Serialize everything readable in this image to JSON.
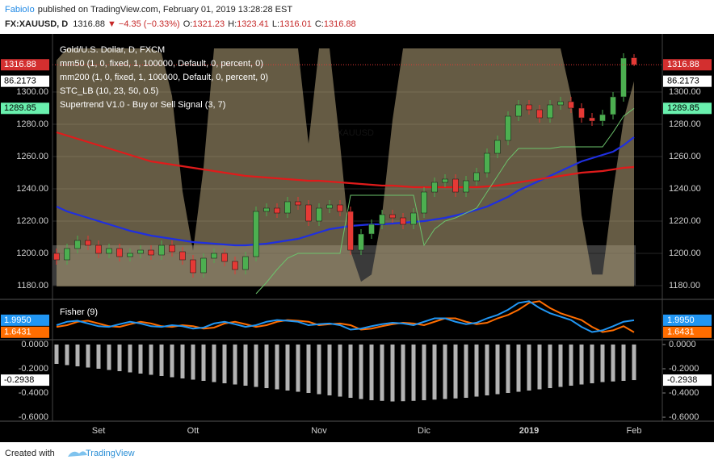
{
  "header": {
    "author": "FabioIo",
    "published": "published on TradingView.com, February 01, 2019 13:28:28 EST",
    "symbol": "FX:XAUUSD, D",
    "change": "−4.35 (−0.33%)",
    "ohlc_labels": [
      "O:",
      "H:",
      "L:",
      "C:"
    ]
  },
  "footer": {
    "prefix": "Created with",
    "brand": "TradingView"
  },
  "chart_data": [
    {
      "type": "candlestick",
      "title": "Gold/U.S. Dollar, D, FXCM",
      "watermark": "XAUUSD",
      "categories": [
        null,
        null,
        null,
        null,
        "Set",
        null,
        null,
        null,
        null,
        null,
        null,
        null,
        null,
        "Ott",
        null,
        null,
        null,
        null,
        null,
        null,
        null,
        null,
        null,
        null,
        null,
        "Nov",
        null,
        null,
        null,
        null,
        null,
        null,
        null,
        null,
        null,
        "Dic",
        null,
        null,
        null,
        null,
        null,
        null,
        null,
        null,
        null,
        "2019",
        null,
        null,
        null,
        null,
        null,
        null,
        null,
        null,
        null,
        "Feb"
      ],
      "open": [
        1200,
        1196,
        1203,
        1208,
        1205,
        1200,
        1203,
        1198,
        1200,
        1202,
        1199,
        1205,
        1201,
        1196,
        1188,
        1197,
        1200,
        1195,
        1190,
        1198,
        1226,
        1228,
        1225,
        1232,
        1230,
        1220,
        1228,
        1230,
        1226,
        1202,
        1212,
        1218,
        1224,
        1222,
        1218,
        1225,
        1238,
        1244,
        1246,
        1238,
        1245,
        1250,
        1262,
        1270,
        1285,
        1292,
        1289,
        1284,
        1292,
        1294,
        1290,
        1284,
        1282,
        1286,
        1297,
        1321.23
      ],
      "high": [
        1203,
        1206,
        1211,
        1211,
        1208,
        1206,
        1206,
        1203,
        1205,
        1205,
        1208,
        1208,
        1204,
        1199,
        1200,
        1203,
        1203,
        1198,
        1201,
        1229,
        1231,
        1231,
        1235,
        1235,
        1233,
        1231,
        1233,
        1233,
        1229,
        1215,
        1221,
        1227,
        1227,
        1225,
        1228,
        1241,
        1247,
        1249,
        1249,
        1248,
        1253,
        1265,
        1273,
        1288,
        1295,
        1295,
        1292,
        1295,
        1297,
        1297,
        1293,
        1287,
        1289,
        1300,
        1324,
        1323.41
      ],
      "low": [
        1193,
        1193,
        1200,
        1202,
        1197,
        1197,
        1195,
        1195,
        1197,
        1196,
        1196,
        1198,
        1193,
        1185,
        1185,
        1194,
        1192,
        1187,
        1187,
        1195,
        1223,
        1222,
        1222,
        1227,
        1217,
        1217,
        1225,
        1223,
        1199,
        1199,
        1209,
        1215,
        1219,
        1215,
        1215,
        1222,
        1235,
        1241,
        1235,
        1235,
        1242,
        1247,
        1259,
        1267,
        1282,
        1286,
        1281,
        1281,
        1289,
        1287,
        1281,
        1279,
        1279,
        1283,
        1294,
        1316.01
      ],
      "close": [
        1196,
        1203,
        1208,
        1205,
        1200,
        1203,
        1198,
        1200,
        1202,
        1199,
        1205,
        1201,
        1196,
        1188,
        1197,
        1200,
        1195,
        1190,
        1198,
        1226,
        1228,
        1225,
        1232,
        1230,
        1220,
        1228,
        1230,
        1226,
        1202,
        1212,
        1218,
        1224,
        1222,
        1218,
        1225,
        1238,
        1244,
        1246,
        1238,
        1245,
        1250,
        1262,
        1270,
        1285,
        1292,
        1289,
        1284,
        1292,
        1294,
        1290,
        1284,
        1282,
        1286,
        1297,
        1321,
        1316.88
      ],
      "up_color": "#4caf50",
      "down_color": "#e53935",
      "ylim": [
        1172,
        1336
      ],
      "yticks": [
        {
          "value": 1180,
          "label": "1180.00"
        },
        {
          "value": 1200,
          "label": "1200.00"
        },
        {
          "value": 1220,
          "label": "1220.00"
        },
        {
          "value": 1240,
          "label": "1240.00"
        },
        {
          "value": 1260,
          "label": "1260.00"
        },
        {
          "value": 1280,
          "label": "1280.00"
        },
        {
          "value": 1300,
          "label": "1300.00"
        }
      ],
      "y2lim": [
        0,
        100
      ],
      "series": [
        {
          "name": "mm50 (1, 0, fixed, 1, 100000, Default, 0, percent, 0)",
          "color": "#1f2fe0",
          "values": [
            1229,
            1226,
            1224,
            1222,
            1220,
            1218,
            1216,
            1214,
            1212.5,
            1211,
            1210,
            1209,
            1208,
            1207,
            1206.5,
            1206,
            1205.5,
            1205,
            1205,
            1205.5,
            1206,
            1207,
            1208,
            1209,
            1211,
            1213,
            1215,
            1216,
            1217,
            1217.5,
            1218,
            1218,
            1218.5,
            1219,
            1219.5,
            1220,
            1221,
            1222,
            1223.5,
            1225,
            1227,
            1229,
            1232,
            1235,
            1239,
            1242,
            1245,
            1248,
            1251,
            1254,
            1257,
            1259,
            1261,
            1263,
            1267,
            1272
          ]
        },
        {
          "name": "mm200 (1, 0, fixed, 1, 100000, Default, 0, percent, 0)",
          "color": "#e01b1b",
          "values": [
            1275,
            1273,
            1271,
            1269,
            1267,
            1265,
            1263,
            1261,
            1259,
            1257,
            1256,
            1255,
            1254,
            1253,
            1252,
            1251,
            1250,
            1249,
            1248,
            1247.5,
            1247,
            1246.5,
            1246,
            1245.5,
            1245,
            1245,
            1244.5,
            1244,
            1243.5,
            1243,
            1242.5,
            1242,
            1242,
            1241.5,
            1241,
            1241,
            1241,
            1241,
            1241,
            1241,
            1241,
            1241.5,
            1242,
            1243,
            1244,
            1245,
            1246,
            1247,
            1248,
            1249,
            1250,
            1250.5,
            1251,
            1252,
            1253,
            1253.5
          ]
        },
        {
          "name": "STC_LB (10, 23, 50, 0.5)",
          "type": "area",
          "axis": "y2",
          "color": "#b8a67c",
          "values": [
            95,
            100,
            100,
            100,
            100,
            100,
            100,
            100,
            100,
            100,
            98,
            80,
            40,
            15,
            50,
            100,
            100,
            100,
            100,
            100,
            100,
            100,
            100,
            100,
            60,
            100,
            100,
            60,
            15,
            2,
            5,
            30,
            70,
            100,
            100,
            100,
            100,
            100,
            100,
            100,
            100,
            100,
            100,
            100,
            100,
            100,
            100,
            100,
            100,
            80,
            30,
            5,
            5,
            40,
            70,
            86.2173
          ]
        },
        {
          "name": "Supertrend V1.0 - Buy or Sell Signal (3, 7)",
          "color": "#6cc36c",
          "values": [
            null,
            null,
            null,
            null,
            null,
            null,
            null,
            null,
            null,
            null,
            null,
            null,
            null,
            null,
            null,
            null,
            null,
            null,
            null,
            1175,
            1182,
            1190,
            1197,
            1200,
            1200,
            1200,
            1200,
            1200,
            1236,
            1236,
            1236,
            1236,
            1236,
            1236,
            1236,
            1205,
            1215,
            1220,
            1222,
            1225,
            1228,
            1238,
            1248,
            1258,
            1265,
            1265,
            1265,
            1265,
            1266,
            1266,
            1266,
            1266,
            1266,
            1275,
            1285,
            1289.85
          ]
        }
      ]
    },
    {
      "type": "line",
      "title": "Fisher (9)",
      "ylim": [
        1.45,
        2.58
      ],
      "series": [
        {
          "color": "#2196f3",
          "values": [
            1.85,
            1.95,
            1.98,
            1.9,
            1.82,
            1.8,
            1.88,
            1.95,
            1.9,
            1.82,
            1.8,
            1.85,
            1.82,
            1.75,
            1.78,
            1.9,
            1.95,
            1.88,
            1.8,
            1.85,
            1.95,
            2.0,
            1.98,
            1.95,
            1.85,
            1.88,
            1.9,
            1.85,
            1.72,
            1.75,
            1.82,
            1.88,
            1.92,
            1.9,
            1.85,
            1.95,
            2.05,
            2.05,
            1.95,
            1.88,
            1.92,
            2.05,
            2.15,
            2.3,
            2.5,
            2.55,
            2.35,
            2.2,
            2.1,
            2.0,
            1.8,
            1.65,
            1.7,
            1.82,
            1.95,
            1.995
          ],
          "value_labels": [
            null,
            null,
            null,
            null,
            null,
            null,
            null,
            null,
            null,
            null,
            null,
            null,
            null,
            null,
            null,
            null,
            null,
            null,
            null,
            null,
            null,
            null,
            null,
            null,
            null,
            null,
            null,
            null,
            null,
            null,
            null,
            null,
            null,
            null,
            null,
            null,
            null,
            null,
            null,
            null,
            null,
            null,
            null,
            null,
            null,
            null,
            null,
            null,
            null,
            null,
            null,
            null,
            null,
            null,
            null,
            "1.9950"
          ]
        },
        {
          "color": "#ff6d00",
          "values": [
            1.8,
            1.85,
            1.95,
            1.98,
            1.9,
            1.82,
            1.8,
            1.88,
            1.95,
            1.9,
            1.82,
            1.8,
            1.85,
            1.82,
            1.75,
            1.78,
            1.9,
            1.95,
            1.88,
            1.8,
            1.85,
            1.95,
            2.0,
            1.98,
            1.95,
            1.85,
            1.88,
            1.9,
            1.85,
            1.72,
            1.75,
            1.82,
            1.88,
            1.92,
            1.9,
            1.85,
            1.95,
            2.05,
            2.05,
            1.95,
            1.88,
            1.92,
            2.05,
            2.15,
            2.3,
            2.5,
            2.55,
            2.35,
            2.2,
            2.1,
            2.0,
            1.8,
            1.65,
            1.7,
            1.82,
            1.6431
          ]
        }
      ]
    },
    {
      "type": "bar",
      "ylim": [
        -0.633,
        0.033
      ],
      "color": "#b3b3b3",
      "yticks": [
        {
          "value": 0,
          "label": "0.0000"
        },
        {
          "value": -0.2,
          "label": "-0.2000"
        },
        {
          "value": -0.4,
          "label": "-0.4000"
        },
        {
          "value": -0.6,
          "label": "-0.6000"
        }
      ],
      "values": [
        -0.16,
        -0.17,
        -0.18,
        -0.19,
        -0.2,
        -0.21,
        -0.22,
        -0.23,
        -0.24,
        -0.25,
        -0.26,
        -0.27,
        -0.28,
        -0.29,
        -0.3,
        -0.31,
        -0.32,
        -0.33,
        -0.34,
        -0.35,
        -0.36,
        -0.37,
        -0.38,
        -0.39,
        -0.4,
        -0.41,
        -0.42,
        -0.43,
        -0.44,
        -0.45,
        -0.46,
        -0.465,
        -0.47,
        -0.468,
        -0.465,
        -0.46,
        -0.455,
        -0.45,
        -0.445,
        -0.44,
        -0.43,
        -0.42,
        -0.41,
        -0.4,
        -0.39,
        -0.38,
        -0.37,
        -0.36,
        -0.35,
        -0.34,
        -0.33,
        -0.32,
        -0.31,
        -0.305,
        -0.3,
        -0.2938
      ]
    }
  ]
}
